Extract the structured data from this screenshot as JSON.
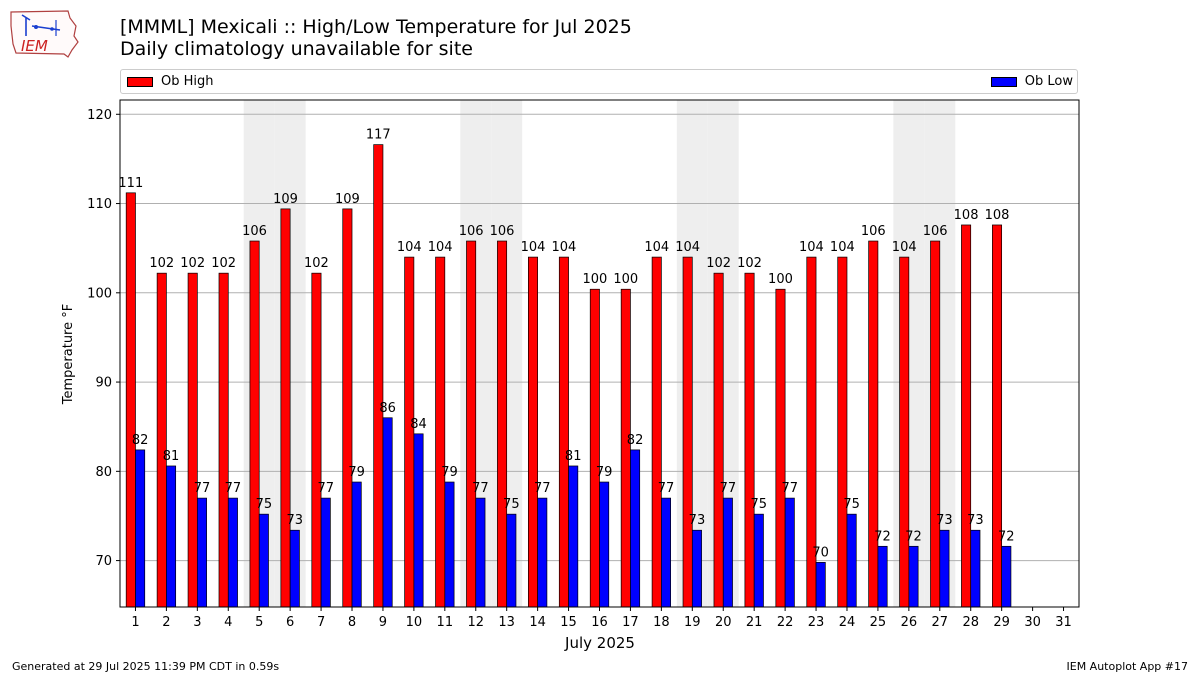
{
  "header": {
    "logo_text": "IEM",
    "title": "[MMML] Mexicali :: High/Low Temperature for Jul 2025",
    "subtitle": "Daily climatology unavailable for site"
  },
  "legend": {
    "high_label": "Ob High",
    "low_label": "Ob Low"
  },
  "footer": {
    "generated": "Generated at 29 Jul 2025 11:39 PM CDT in 0.59s",
    "app": "IEM Autoplot App #17"
  },
  "colors": {
    "high": "#ff0000",
    "low": "#0000ff",
    "weekend_shade": "#eeeeee",
    "grid": "#b0b0b0"
  },
  "chart_data": {
    "type": "bar",
    "xlabel": "July 2025",
    "ylabel": "Temperature °F",
    "ylim": [
      64.8,
      121.6
    ],
    "yticks": [
      70,
      80,
      90,
      100,
      110,
      120
    ],
    "grid": "horizontal",
    "legend_placement": "top",
    "categories": [
      "1",
      "2",
      "3",
      "4",
      "5",
      "6",
      "7",
      "8",
      "9",
      "10",
      "11",
      "12",
      "13",
      "14",
      "15",
      "16",
      "17",
      "18",
      "19",
      "20",
      "21",
      "22",
      "23",
      "24",
      "25",
      "26",
      "27",
      "28",
      "29",
      "30",
      "31"
    ],
    "shaded_days": [
      5,
      6,
      12,
      13,
      19,
      20,
      26,
      27
    ],
    "series": [
      {
        "name": "Ob High",
        "color": "#ff0000",
        "values": [
          111,
          102,
          102,
          102,
          106,
          109,
          102,
          109,
          117,
          104,
          104,
          106,
          106,
          104,
          104,
          100,
          100,
          104,
          104,
          102,
          102,
          100,
          104,
          104,
          106,
          104,
          106,
          108,
          108,
          null,
          null
        ],
        "plotted": [
          111.2,
          102.2,
          102.2,
          102.2,
          105.8,
          109.4,
          102.2,
          109.4,
          116.6,
          104.0,
          104.0,
          105.8,
          105.8,
          104.0,
          104.0,
          100.4,
          100.4,
          104.0,
          104.0,
          102.2,
          102.2,
          100.4,
          104.0,
          104.0,
          105.8,
          104.0,
          105.8,
          107.6,
          107.6,
          null,
          null
        ]
      },
      {
        "name": "Ob Low",
        "color": "#0000ff",
        "values": [
          82,
          81,
          77,
          77,
          75,
          73,
          77,
          79,
          86,
          84,
          79,
          77,
          75,
          77,
          81,
          79,
          82,
          77,
          73,
          77,
          75,
          77,
          70,
          75,
          72,
          72,
          73,
          73,
          72,
          null,
          null
        ],
        "plotted": [
          82.4,
          80.6,
          77.0,
          77.0,
          75.2,
          73.4,
          77.0,
          78.8,
          86.0,
          84.2,
          78.8,
          77.0,
          75.2,
          77.0,
          80.6,
          78.8,
          82.4,
          77.0,
          73.4,
          77.0,
          75.2,
          77.0,
          69.8,
          75.2,
          71.6,
          71.6,
          73.4,
          73.4,
          71.6,
          null,
          null
        ]
      }
    ]
  }
}
